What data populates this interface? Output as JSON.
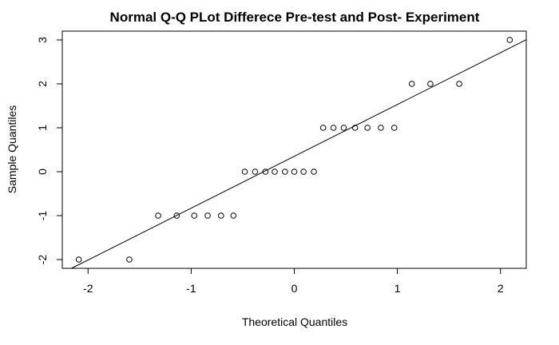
{
  "chart_data": {
    "type": "scatter",
    "title": "Normal Q-Q PLot Differece Pre-test and Post- Experiment",
    "xlabel": "Theoretical Quantiles",
    "ylabel": "Sample Quantiles",
    "xlim": [
      -2.25,
      2.25
    ],
    "ylim": [
      -2.2,
      3.2
    ],
    "xticks": [
      -2,
      -1,
      0,
      1,
      2
    ],
    "yticks": [
      -2,
      -1,
      0,
      1,
      2,
      3
    ],
    "grid": false,
    "points": [
      {
        "x": -2.09,
        "y": -2
      },
      {
        "x": -1.6,
        "y": -2
      },
      {
        "x": -1.32,
        "y": -1
      },
      {
        "x": -1.14,
        "y": -1
      },
      {
        "x": -0.97,
        "y": -1
      },
      {
        "x": -0.84,
        "y": -1
      },
      {
        "x": -0.71,
        "y": -1
      },
      {
        "x": -0.59,
        "y": -1
      },
      {
        "x": -0.48,
        "y": 0
      },
      {
        "x": -0.38,
        "y": 0
      },
      {
        "x": -0.28,
        "y": 0
      },
      {
        "x": -0.19,
        "y": 0
      },
      {
        "x": -0.09,
        "y": 0
      },
      {
        "x": 0.0,
        "y": 0
      },
      {
        "x": 0.09,
        "y": 0
      },
      {
        "x": 0.19,
        "y": 0
      },
      {
        "x": 0.28,
        "y": 1
      },
      {
        "x": 0.38,
        "y": 1
      },
      {
        "x": 0.48,
        "y": 1
      },
      {
        "x": 0.59,
        "y": 1
      },
      {
        "x": 0.71,
        "y": 1
      },
      {
        "x": 0.84,
        "y": 1
      },
      {
        "x": 0.97,
        "y": 1
      },
      {
        "x": 1.14,
        "y": 2
      },
      {
        "x": 1.32,
        "y": 2
      },
      {
        "x": 1.6,
        "y": 2
      },
      {
        "x": 2.09,
        "y": 3
      }
    ],
    "reference_line": {
      "intercept": 0.35,
      "slope": 1.18
    }
  }
}
